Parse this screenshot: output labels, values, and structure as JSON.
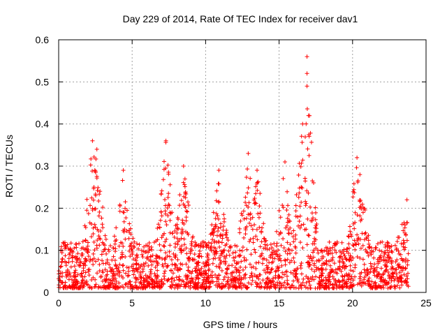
{
  "chart_data": {
    "type": "scatter",
    "title": "Day 229 of 2014, Rate Of TEC Index for receiver dav1",
    "xlabel": "GPS time / hours",
    "ylabel": "ROTI / TECUs",
    "xlim": [
      0,
      25
    ],
    "ylim": [
      0,
      0.6
    ],
    "x_ticks": [
      0,
      5,
      10,
      15,
      20,
      25
    ],
    "x_tick_labels": [
      "0",
      "5",
      "10",
      "15",
      "20",
      "25"
    ],
    "y_ticks": [
      0,
      0.1,
      0.2,
      0.3,
      0.4,
      0.5,
      0.6
    ],
    "y_tick_labels": [
      "0",
      "0.1",
      "0.2",
      "0.3",
      "0.4",
      "0.5",
      "0.6"
    ],
    "grid": true,
    "marker": "+",
    "marker_color": "#ff0000",
    "series": [
      {
        "name": "ROTI",
        "x_range": [
          0,
          23.8
        ],
        "typical_band": [
          0.01,
          0.12
        ],
        "peaks": [
          {
            "x": 2.3,
            "y": 0.36
          },
          {
            "x": 2.6,
            "y": 0.34
          },
          {
            "x": 4.4,
            "y": 0.29
          },
          {
            "x": 7.3,
            "y": 0.36
          },
          {
            "x": 8.5,
            "y": 0.3
          },
          {
            "x": 10.9,
            "y": 0.29
          },
          {
            "x": 12.9,
            "y": 0.33
          },
          {
            "x": 13.5,
            "y": 0.29
          },
          {
            "x": 15.4,
            "y": 0.31
          },
          {
            "x": 16.6,
            "y": 0.4
          },
          {
            "x": 16.9,
            "y": 0.56
          },
          {
            "x": 16.9,
            "y": 0.52
          },
          {
            "x": 16.9,
            "y": 0.49
          },
          {
            "x": 17.0,
            "y": 0.42
          },
          {
            "x": 20.3,
            "y": 0.32
          },
          {
            "x": 20.5,
            "y": 0.28
          },
          {
            "x": 23.7,
            "y": 0.22
          }
        ]
      }
    ]
  }
}
